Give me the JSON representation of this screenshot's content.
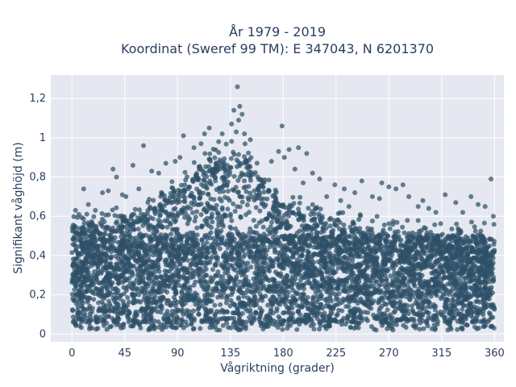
{
  "chart_data": {
    "type": "scatter",
    "title_line1": "År 1979 - 2019",
    "title_line2": "Koordinat (Sweref 99 TM): E 347043, N 6201370",
    "xlabel": "Vågriktning (grader)",
    "ylabel": "Signifikant våghöjd (m)",
    "xlim": [
      -18,
      368
    ],
    "ylim": [
      -0.04,
      1.32
    ],
    "xticks": [
      0,
      45,
      90,
      135,
      180,
      225,
      270,
      315,
      360
    ],
    "xtick_labels": [
      "0",
      "45",
      "90",
      "135",
      "180",
      "225",
      "270",
      "315",
      "360"
    ],
    "yticks": [
      0,
      0.2,
      0.4,
      0.6,
      0.8,
      1,
      1.2
    ],
    "ytick_labels": [
      "0",
      "0,2",
      "0,4",
      "0,6",
      "0,8",
      "1",
      "1,2"
    ],
    "grid": true,
    "marker_color": "#2e5068",
    "plot_background": "#e5e8f0",
    "x_range": [
      0,
      360
    ],
    "dense_band": [
      0.06,
      0.5
    ],
    "envelope": {
      "x": [
        0,
        20,
        45,
        60,
        80,
        90,
        100,
        115,
        125,
        135,
        140,
        150,
        160,
        175,
        190,
        210,
        230,
        260,
        290,
        320,
        345,
        360
      ],
      "upper": [
        0.53,
        0.55,
        0.57,
        0.6,
        0.66,
        0.71,
        0.76,
        0.82,
        0.86,
        0.88,
        0.88,
        0.86,
        0.78,
        0.66,
        0.61,
        0.57,
        0.53,
        0.51,
        0.5,
        0.48,
        0.47,
        0.46
      ]
    },
    "outliers": [
      {
        "x": 141,
        "y": 1.26
      },
      {
        "x": 143,
        "y": 1.16
      },
      {
        "x": 138,
        "y": 1.14
      },
      {
        "x": 145,
        "y": 1.12
      },
      {
        "x": 142,
        "y": 1.09
      },
      {
        "x": 136,
        "y": 1.07
      },
      {
        "x": 140,
        "y": 1.03
      },
      {
        "x": 147,
        "y": 1.02
      },
      {
        "x": 179,
        "y": 1.06
      },
      {
        "x": 117,
        "y": 1.05
      },
      {
        "x": 128,
        "y": 1.02
      },
      {
        "x": 95,
        "y": 1.01
      },
      {
        "x": 113,
        "y": 1.02
      },
      {
        "x": 125,
        "y": 0.98
      },
      {
        "x": 152,
        "y": 0.99
      },
      {
        "x": 110,
        "y": 0.97
      },
      {
        "x": 104,
        "y": 0.95
      },
      {
        "x": 185,
        "y": 0.94
      },
      {
        "x": 200,
        "y": 0.92
      },
      {
        "x": 193,
        "y": 0.95
      },
      {
        "x": 61,
        "y": 0.96
      },
      {
        "x": 181,
        "y": 0.9
      },
      {
        "x": 176,
        "y": 0.93
      },
      {
        "x": 170,
        "y": 0.88
      },
      {
        "x": 52,
        "y": 0.86
      },
      {
        "x": 80,
        "y": 0.87
      },
      {
        "x": 88,
        "y": 0.88
      },
      {
        "x": 92,
        "y": 0.9
      },
      {
        "x": 35,
        "y": 0.84
      },
      {
        "x": 38,
        "y": 0.8
      },
      {
        "x": 68,
        "y": 0.83
      },
      {
        "x": 74,
        "y": 0.82
      },
      {
        "x": 190,
        "y": 0.84
      },
      {
        "x": 205,
        "y": 0.82
      },
      {
        "x": 211,
        "y": 0.79
      },
      {
        "x": 197,
        "y": 0.77
      },
      {
        "x": 224,
        "y": 0.76
      },
      {
        "x": 232,
        "y": 0.74
      },
      {
        "x": 247,
        "y": 0.78
      },
      {
        "x": 264,
        "y": 0.77
      },
      {
        "x": 270,
        "y": 0.75
      },
      {
        "x": 276,
        "y": 0.74
      },
      {
        "x": 282,
        "y": 0.76
      },
      {
        "x": 287,
        "y": 0.7
      },
      {
        "x": 256,
        "y": 0.7
      },
      {
        "x": 241,
        "y": 0.72
      },
      {
        "x": 217,
        "y": 0.7
      },
      {
        "x": 318,
        "y": 0.71
      },
      {
        "x": 340,
        "y": 0.7
      },
      {
        "x": 357,
        "y": 0.79
      },
      {
        "x": 327,
        "y": 0.67
      },
      {
        "x": 346,
        "y": 0.66
      },
      {
        "x": 352,
        "y": 0.65
      },
      {
        "x": 10,
        "y": 0.74
      },
      {
        "x": 26,
        "y": 0.72
      },
      {
        "x": 31,
        "y": 0.73
      },
      {
        "x": 43,
        "y": 0.71
      },
      {
        "x": 46,
        "y": 0.7
      },
      {
        "x": 57,
        "y": 0.74
      },
      {
        "x": 3,
        "y": 0.63
      },
      {
        "x": 6,
        "y": 0.61
      },
      {
        "x": 14,
        "y": 0.66
      },
      {
        "x": 20,
        "y": 0.63
      },
      {
        "x": 304,
        "y": 0.64
      },
      {
        "x": 295,
        "y": 0.65
      },
      {
        "x": 310,
        "y": 0.62
      },
      {
        "x": 333,
        "y": 0.62
      },
      {
        "x": 359,
        "y": 0.6
      },
      {
        "x": 299,
        "y": 0.68
      },
      {
        "x": 262,
        "y": 0.69
      },
      {
        "x": 229,
        "y": 0.68
      },
      {
        "x": 236,
        "y": 0.65
      }
    ]
  }
}
